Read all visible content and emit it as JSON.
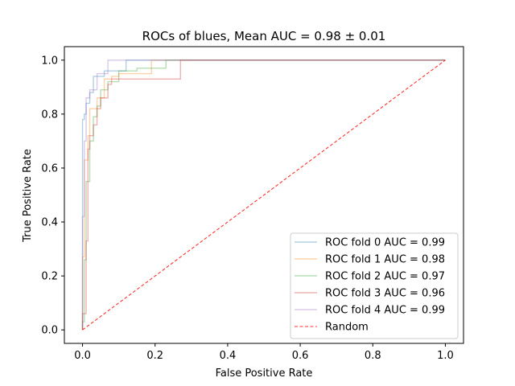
{
  "chart_data": {
    "type": "line",
    "title": "ROCs of blues, Mean AUC = 0.98 ± 0.01",
    "xlabel": "False Positive Rate",
    "ylabel": "True Positive Rate",
    "xlim": [
      -0.05,
      1.05
    ],
    "ylim": [
      -0.05,
      1.05
    ],
    "x_ticks": [
      0.0,
      0.2,
      0.4,
      0.6,
      0.8,
      1.0
    ],
    "y_ticks": [
      0.0,
      0.2,
      0.4,
      0.6,
      0.8,
      1.0
    ],
    "x_tick_labels": [
      "0.0",
      "0.2",
      "0.4",
      "0.6",
      "0.8",
      "1.0"
    ],
    "y_tick_labels": [
      "0.0",
      "0.2",
      "0.4",
      "0.6",
      "0.8",
      "1.0"
    ],
    "grid": false,
    "legend_position": "lower-right",
    "series": [
      {
        "name": "ROC fold 0 AUC = 0.99",
        "color": "#1f77b4",
        "style": "step",
        "x": [
          0.0,
          0.0,
          0.0,
          0.005,
          0.005,
          0.01,
          0.01,
          0.02,
          0.02,
          0.03,
          0.03,
          0.06,
          0.06,
          0.12,
          0.12,
          1.0
        ],
        "y": [
          0.0,
          0.55,
          0.78,
          0.78,
          0.8,
          0.8,
          0.84,
          0.84,
          0.88,
          0.88,
          0.94,
          0.94,
          0.96,
          0.96,
          1.0,
          1.0
        ]
      },
      {
        "name": "ROC fold 1 AUC = 0.98",
        "color": "#ff7f0e",
        "style": "step",
        "x": [
          0.0,
          0.0,
          0.005,
          0.005,
          0.015,
          0.015,
          0.02,
          0.02,
          0.04,
          0.04,
          0.06,
          0.06,
          0.08,
          0.08,
          0.1,
          0.1,
          0.19,
          0.19,
          1.0
        ],
        "y": [
          0.0,
          0.27,
          0.27,
          0.63,
          0.63,
          0.72,
          0.72,
          0.82,
          0.82,
          0.86,
          0.86,
          0.93,
          0.93,
          0.94,
          0.94,
          0.95,
          0.95,
          1.0,
          1.0
        ]
      },
      {
        "name": "ROC fold 2 AUC = 0.97",
        "color": "#2ca02c",
        "style": "step",
        "x": [
          0.0,
          0.0,
          0.005,
          0.005,
          0.01,
          0.01,
          0.02,
          0.02,
          0.03,
          0.03,
          0.04,
          0.04,
          0.05,
          0.05,
          0.07,
          0.07,
          0.1,
          0.1,
          0.15,
          0.15,
          0.23,
          0.23,
          1.0
        ],
        "y": [
          0.0,
          0.03,
          0.03,
          0.26,
          0.26,
          0.55,
          0.55,
          0.7,
          0.7,
          0.79,
          0.79,
          0.83,
          0.83,
          0.89,
          0.89,
          0.92,
          0.92,
          0.96,
          0.96,
          0.97,
          0.97,
          1.0,
          1.0
        ]
      },
      {
        "name": "ROC fold 3 AUC = 0.96",
        "color": "#d62728",
        "style": "step",
        "x": [
          0.0,
          0.0,
          0.01,
          0.01,
          0.015,
          0.015,
          0.02,
          0.02,
          0.03,
          0.03,
          0.04,
          0.04,
          0.05,
          0.05,
          0.07,
          0.07,
          0.08,
          0.08,
          0.27,
          0.27,
          1.0
        ],
        "y": [
          0.0,
          0.06,
          0.06,
          0.33,
          0.33,
          0.67,
          0.67,
          0.72,
          0.72,
          0.76,
          0.76,
          0.82,
          0.82,
          0.86,
          0.86,
          0.91,
          0.91,
          0.93,
          0.93,
          1.0,
          1.0
        ]
      },
      {
        "name": "ROC fold 4 AUC = 0.99",
        "color": "#9467bd",
        "style": "step",
        "x": [
          0.0,
          0.0,
          0.005,
          0.005,
          0.01,
          0.01,
          0.02,
          0.02,
          0.04,
          0.04,
          0.07,
          0.07,
          1.0
        ],
        "y": [
          0.0,
          0.42,
          0.42,
          0.7,
          0.7,
          0.86,
          0.86,
          0.89,
          0.89,
          0.95,
          0.95,
          1.0,
          1.0
        ]
      },
      {
        "name": "Random",
        "color": "#ff0000",
        "style": "dashed",
        "x": [
          0.0,
          1.0
        ],
        "y": [
          0.0,
          1.0
        ]
      }
    ]
  }
}
